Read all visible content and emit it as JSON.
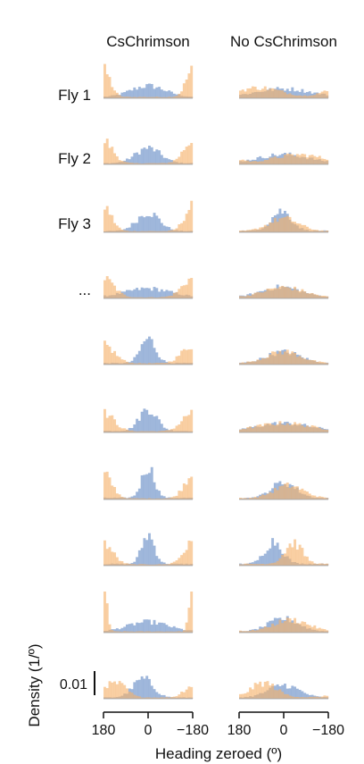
{
  "chart_data": {
    "type": "histogram",
    "columns": [
      {
        "name": "CsChrimson",
        "panels": 10
      },
      {
        "name": "No CsChrimson",
        "panels": 10
      }
    ],
    "row_labels": [
      "Fly 1",
      "Fly 2",
      "Fly 3",
      "...",
      "",
      "",
      "",
      "",
      "",
      ""
    ],
    "series": [
      {
        "name": "",
        "color": "#7f9fcf"
      },
      {
        "name": "",
        "color": "#f5b26b"
      }
    ],
    "x_axis": {
      "label": "Heading zeroed (º)",
      "ticks": [
        "180",
        "0",
        "−180"
      ],
      "range": [
        180,
        -180
      ]
    },
    "y_axis": {
      "label": "Density (1/º)",
      "scale_bar_value": "0.01",
      "scale_bar_units": 0.01
    },
    "bins": 36,
    "fly_heading_profiles": [
      {
        "column": "CsChrimson",
        "blue": [
          [
            0,
            70,
            0.8
          ]
        ],
        "orange": [
          [
            -170,
            25,
            0.9
          ],
          [
            170,
            25,
            0.9
          ]
        ]
      },
      {
        "column": "CsChrimson",
        "blue": [
          [
            0,
            50,
            1.0
          ]
        ],
        "orange": [
          [
            -170,
            35,
            0.8
          ],
          [
            170,
            35,
            0.8
          ]
        ]
      },
      {
        "column": "CsChrimson",
        "blue": [
          [
            0,
            45,
            1.2
          ]
        ],
        "orange": [
          [
            -170,
            30,
            0.9
          ],
          [
            170,
            30,
            0.9
          ]
        ]
      },
      {
        "column": "CsChrimson",
        "blue": [
          [
            0,
            90,
            0.6
          ]
        ],
        "orange": [
          [
            -170,
            40,
            0.7
          ],
          [
            170,
            40,
            0.7
          ]
        ]
      },
      {
        "column": "CsChrimson",
        "blue": [
          [
            0,
            30,
            1.3
          ]
        ],
        "orange": [
          [
            -165,
            40,
            0.6
          ],
          [
            165,
            40,
            0.6
          ]
        ]
      },
      {
        "column": "CsChrimson",
        "blue": [
          [
            0,
            35,
            1.1
          ]
        ],
        "orange": [
          [
            -170,
            40,
            0.6
          ],
          [
            170,
            40,
            0.6
          ]
        ]
      },
      {
        "column": "CsChrimson",
        "blue": [
          [
            0,
            25,
            1.5
          ]
        ],
        "orange": [
          [
            -165,
            30,
            1.0
          ],
          [
            165,
            30,
            1.0
          ]
        ]
      },
      {
        "column": "CsChrimson",
        "blue": [
          [
            0,
            25,
            1.4
          ]
        ],
        "orange": [
          [
            -170,
            35,
            0.7
          ],
          [
            170,
            35,
            0.7
          ]
        ]
      },
      {
        "column": "CsChrimson",
        "blue": [
          [
            0,
            80,
            0.7
          ]
        ],
        "orange": [
          [
            -180,
            12,
            2.2
          ],
          [
            180,
            12,
            2.2
          ]
        ]
      },
      {
        "column": "CsChrimson",
        "blue": [
          [
            20,
            40,
            1.2
          ]
        ],
        "orange": [
          [
            -170,
            30,
            0.6
          ],
          [
            120,
            35,
            0.8
          ]
        ]
      },
      {
        "column": "No CsChrimson",
        "blue": [
          [
            0,
            110,
            0.6
          ]
        ],
        "orange": [
          [
            100,
            90,
            0.6
          ]
        ]
      },
      {
        "column": "No CsChrimson",
        "blue": [
          [
            0,
            100,
            0.6
          ]
        ],
        "orange": [
          [
            -60,
            100,
            0.6
          ]
        ]
      },
      {
        "column": "No CsChrimson",
        "blue": [
          [
            10,
            40,
            1.0
          ]
        ],
        "orange": [
          [
            0,
            60,
            0.8
          ]
        ]
      },
      {
        "column": "No CsChrimson",
        "blue": [
          [
            10,
            80,
            0.7
          ]
        ],
        "orange": [
          [
            0,
            80,
            0.7
          ]
        ]
      },
      {
        "column": "No CsChrimson",
        "blue": [
          [
            0,
            70,
            0.8
          ]
        ],
        "orange": [
          [
            0,
            70,
            0.8
          ]
        ]
      },
      {
        "column": "No CsChrimson",
        "blue": [
          [
            0,
            110,
            0.6
          ]
        ],
        "orange": [
          [
            0,
            110,
            0.6
          ]
        ]
      },
      {
        "column": "No CsChrimson",
        "blue": [
          [
            0,
            50,
            0.9
          ]
        ],
        "orange": [
          [
            -20,
            60,
            0.8
          ]
        ]
      },
      {
        "column": "No CsChrimson",
        "blue": [
          [
            40,
            35,
            1.0
          ]
        ],
        "orange": [
          [
            -40,
            35,
            1.0
          ]
        ]
      },
      {
        "column": "No CsChrimson",
        "blue": [
          [
            0,
            60,
            0.8
          ]
        ],
        "orange": [
          [
            -30,
            70,
            0.8
          ]
        ]
      },
      {
        "column": "No CsChrimson",
        "blue": [
          [
            0,
            60,
            0.8
          ]
        ],
        "orange": [
          [
            80,
            50,
            0.7
          ]
        ]
      }
    ]
  }
}
